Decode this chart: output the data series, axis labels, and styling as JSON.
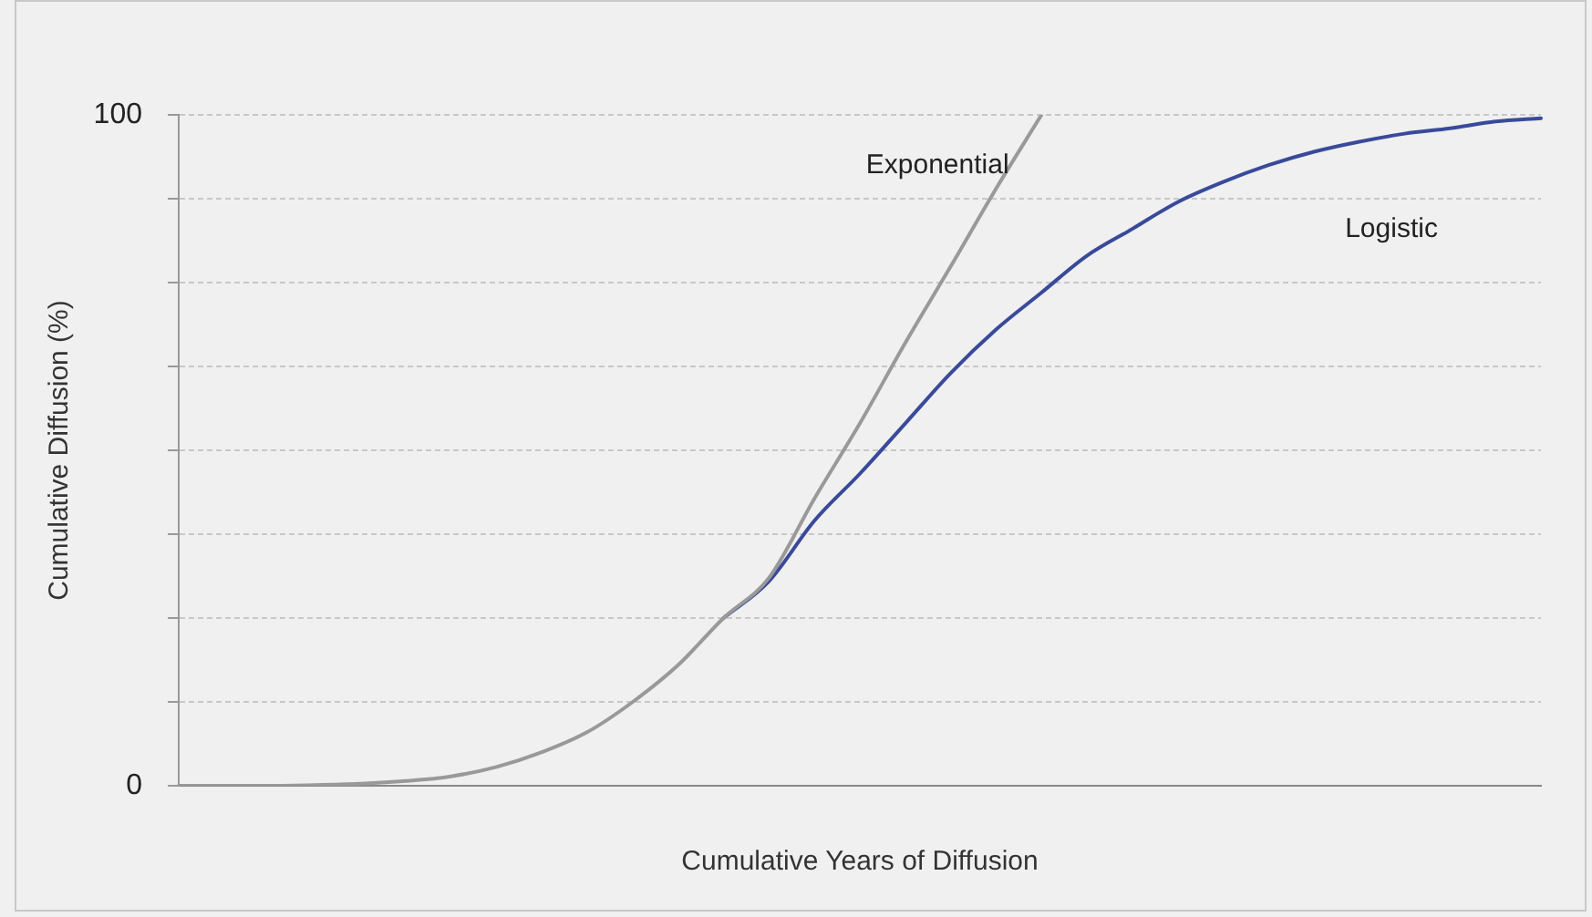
{
  "chart_data": {
    "type": "line",
    "xlabel": "Cumulative Years of Diffusion",
    "ylabel": "Cumulative Diffusion (%)",
    "categories": [
      null,
      null,
      null,
      null,
      null,
      null,
      null,
      null,
      null,
      null,
      null,
      null,
      null,
      null,
      null,
      null,
      null,
      null,
      null,
      null,
      null,
      null,
      null,
      null,
      null,
      null,
      null,
      null,
      null,
      null,
      null
    ],
    "series": [
      {
        "name": "Exponential",
        "color": "#999999",
        "values": [
          0,
          0,
          0,
          0.1,
          0.3,
          0.7,
          1.4,
          2.8,
          5,
          8,
          12.5,
          18,
          25,
          31,
          42.8,
          54,
          66,
          77.4,
          89,
          100,
          null,
          null,
          null,
          null,
          null,
          null,
          null,
          null,
          null,
          null,
          null
        ]
      },
      {
        "name": "Logistic",
        "color": "#3a4a9a",
        "values": [
          null,
          null,
          null,
          null,
          null,
          null,
          null,
          null,
          null,
          null,
          null,
          null,
          25,
          30.5,
          39.5,
          46.5,
          54,
          61.5,
          68,
          73.5,
          79,
          83,
          87,
          90,
          92.5,
          94.5,
          96,
          97.2,
          98,
          99,
          99.5
        ]
      }
    ],
    "ylim": [
      0,
      100
    ],
    "yticks": [
      0,
      {
        "value": 12.5,
        "label": null
      },
      {
        "value": 25,
        "label": null
      },
      {
        "value": 37.5,
        "label": null
      },
      {
        "value": 50,
        "label": null
      },
      {
        "value": 62.5,
        "label": null
      },
      {
        "value": 75,
        "label": null
      },
      {
        "value": 87.5,
        "label": null
      },
      100
    ],
    "grid": "y",
    "legend": false,
    "marker": "none",
    "line_style": "solid"
  }
}
